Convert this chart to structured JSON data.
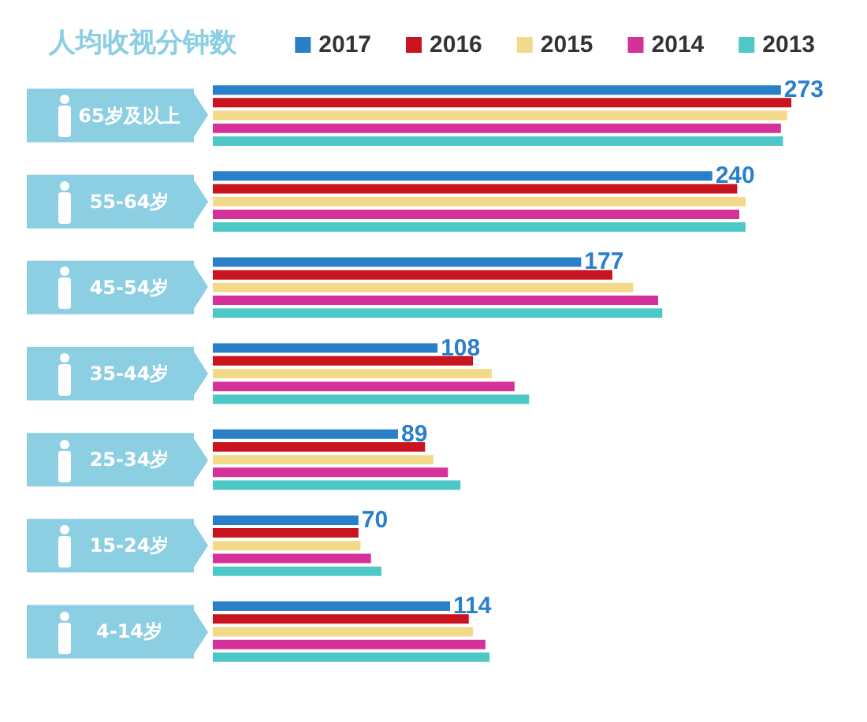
{
  "chart_data": {
    "type": "bar",
    "orientation": "horizontal",
    "title": "人均收视分钟数",
    "categories": [
      "65岁及以上",
      "55-64岁",
      "45-54岁",
      "35-44岁",
      "25-34岁",
      "15-24岁",
      "4-14岁"
    ],
    "series": [
      {
        "name": "2017",
        "color": "#2a7fc9",
        "values": [
          273,
          240,
          177,
          108,
          89,
          70,
          114
        ],
        "value_labels": [
          "273",
          "240",
          "177",
          "108",
          "89",
          "70",
          "114"
        ]
      },
      {
        "name": "2016",
        "color": "#c8141e",
        "values": [
          278,
          252,
          192,
          125,
          102,
          70,
          123
        ]
      },
      {
        "name": "2015",
        "color": "#f3d98a",
        "values": [
          276,
          256,
          202,
          134,
          106,
          71,
          125
        ]
      },
      {
        "name": "2014",
        "color": "#d4329a",
        "values": [
          273,
          253,
          214,
          145,
          113,
          76,
          131
        ]
      },
      {
        "name": "2013",
        "color": "#4ec7c7",
        "values": [
          274,
          256,
          216,
          152,
          119,
          81,
          133
        ]
      }
    ],
    "legend": "top right"
  }
}
